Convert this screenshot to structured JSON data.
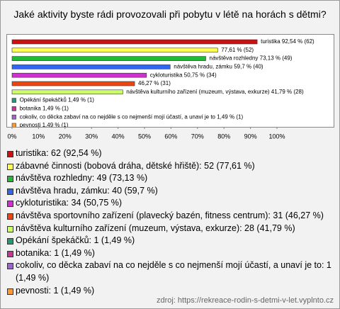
{
  "chart_data": {
    "type": "bar",
    "orientation": "horizontal",
    "title": "Jaké aktivity byste rádi provozovali při pobytu v létě na horách s dětmi?",
    "categories": [
      "turistika",
      "zábavné činnosti (bobová dráha, dětské hřiště)",
      "návštěva rozhledny",
      "návštěva hradu, zámku",
      "cykloturistika",
      "návštěva sportovního zařízení (plavecký bazén, fitness centrum)",
      "návštěva kulturního zařízení (muzeum, výstava, exkurze)",
      "Opékání špekáčků",
      "botanika",
      "cokoliv, co děcka zabaví na co nejděle s co nejmenší mojí účastí, a unaví je to",
      "pevnosti"
    ],
    "values": [
      92.54,
      77.61,
      73.13,
      59.7,
      50.75,
      46.27,
      41.79,
      1.49,
      1.49,
      1.49,
      1.49
    ],
    "value_labels": [
      "turistika 92,54 % (62)",
      "77,61 % (52)",
      "návštěva rozhledny 73,13 % (49)",
      "návštěva hradu, zámku 59,7 % (40)",
      "cykloturistika 50,75 % (34)",
      "46,27 % (31)",
      "návštěva kulturního zařízení (muzeum, výstava, exkurze) 41,79 % (28)",
      "Opékání špekáčků 1,49 % (1)",
      "botanika 1,49 % (1)",
      "cokoliv, co děcka zabaví na co nejděle s co nejmenší mojí účastí, a unaví je to 1,49 % (1)",
      "pevnosti 1,49 % (1)"
    ],
    "legend_labels": [
      "turistika: 62 (92,54 %)",
      "zábavné činnosti (bobová dráha, dětské hřiště): 52 (77,61 %)",
      "návštěva rozhledny: 49 (73,13 %)",
      "návštěva hradu, zámku: 40 (59,7 %)",
      "cykloturistika: 34 (50,75 %)",
      "návštěva sportovního zařízení (plavecký bazén, fitness centrum): 31 (46,27 %)",
      "návštěva kulturního zařízení (muzeum, výstava, exkurze): 28 (41,79 %)",
      "Opékání špekáčků: 1 (1,49 %)",
      "botanika: 1 (1,49 %)",
      "cokoliv, co děcka zabaví na co nejděle s co nejmenší mojí účastí, a unaví je to: 1 (1,49 %)",
      "pevnosti: 1 (1,49 %)"
    ],
    "colors": [
      "#cc1111",
      "#ffff55",
      "#22bb33",
      "#3366ee",
      "#cc33cc",
      "#ee4411",
      "#ccff66",
      "#229977",
      "#cc3399",
      "#9966cc",
      "#ff9933"
    ],
    "xlim": [
      0,
      100
    ],
    "xticks": [
      {
        "value": 0,
        "label": "0%"
      },
      {
        "value": 10,
        "label": "10%"
      },
      {
        "value": 20,
        "label": "20%"
      },
      {
        "value": 30,
        "label": "30%"
      },
      {
        "value": 40,
        "label": "40%"
      },
      {
        "value": 50,
        "label": "50%"
      },
      {
        "value": 60,
        "label": "60%"
      },
      {
        "value": 70,
        "label": "70%"
      },
      {
        "value": 80,
        "label": "80%"
      },
      {
        "value": 90,
        "label": "90%"
      },
      {
        "value": 100,
        "label": "100%"
      }
    ],
    "source": "zdroj: https://rekreace-rodin-s-detmi-v-let.vyplnto.cz"
  }
}
